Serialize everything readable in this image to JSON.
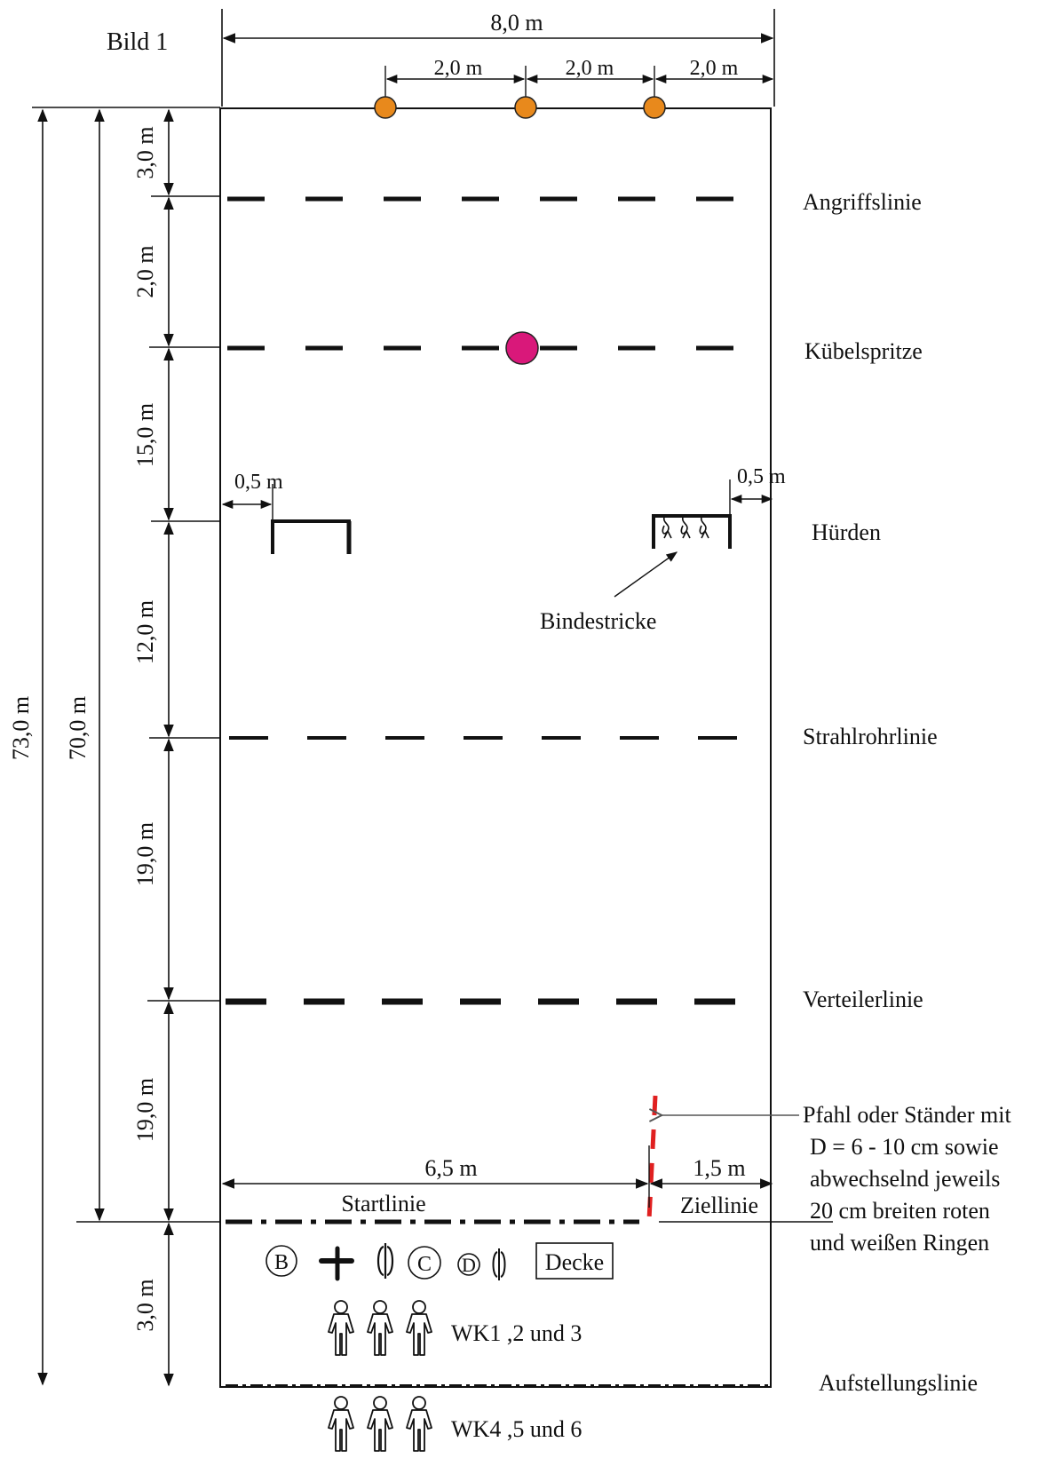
{
  "title": "Bild 1",
  "dimensions": {
    "total_width": "8,0 m",
    "spacing_1": "2,0 m",
    "spacing_2": "2,0 m",
    "spacing_3": "2,0 m",
    "seg_3a": "3,0 m",
    "seg_2": "2,0 m",
    "seg_15": "15,0 m",
    "seg_12": "12,0 m",
    "seg_19a": "19,0 m",
    "seg_19b": "19,0 m",
    "seg_3b": "3,0 m",
    "total_73": "73,0 m",
    "total_70": "70,0 m",
    "hurdle_offset_left": "0,5 m",
    "hurdle_offset_right": "0,5 m",
    "start_width": "6,5 m",
    "finish_width": "1,5 m"
  },
  "lines": {
    "angriffslinie": "Angriffslinie",
    "kuebelspritze": "Kübelspritze",
    "huerden": "Hürden",
    "strahlrohrlinie": "Strahlrohrlinie",
    "verteilerlinie": "Verteilerlinie",
    "aufstellungslinie": "Aufstellungslinie",
    "startlinie": "Startlinie",
    "ziellinie": "Ziellinie"
  },
  "labels": {
    "bindestricke": "Bindestricke",
    "pfahl_1": "Pfahl oder Ständer mit",
    "pfahl_2": "D = 6 - 10 cm  sowie",
    "pfahl_3": "abwechselnd jeweils",
    "pfahl_4": "20 cm breiten   roten",
    "pfahl_5": "und weißen Ringen",
    "equip_b": "B",
    "equip_c": "C",
    "equip_d": "D",
    "decke": "Decke",
    "wk_group_1": "WK1 ,2 und 3",
    "wk_group_2": "WK4 ,5 und 6"
  },
  "colors": {
    "target_marker": "#e8891c",
    "kuebelspritze_marker": "#d9187a",
    "pole_red": "#e02020",
    "line": "#111111"
  }
}
